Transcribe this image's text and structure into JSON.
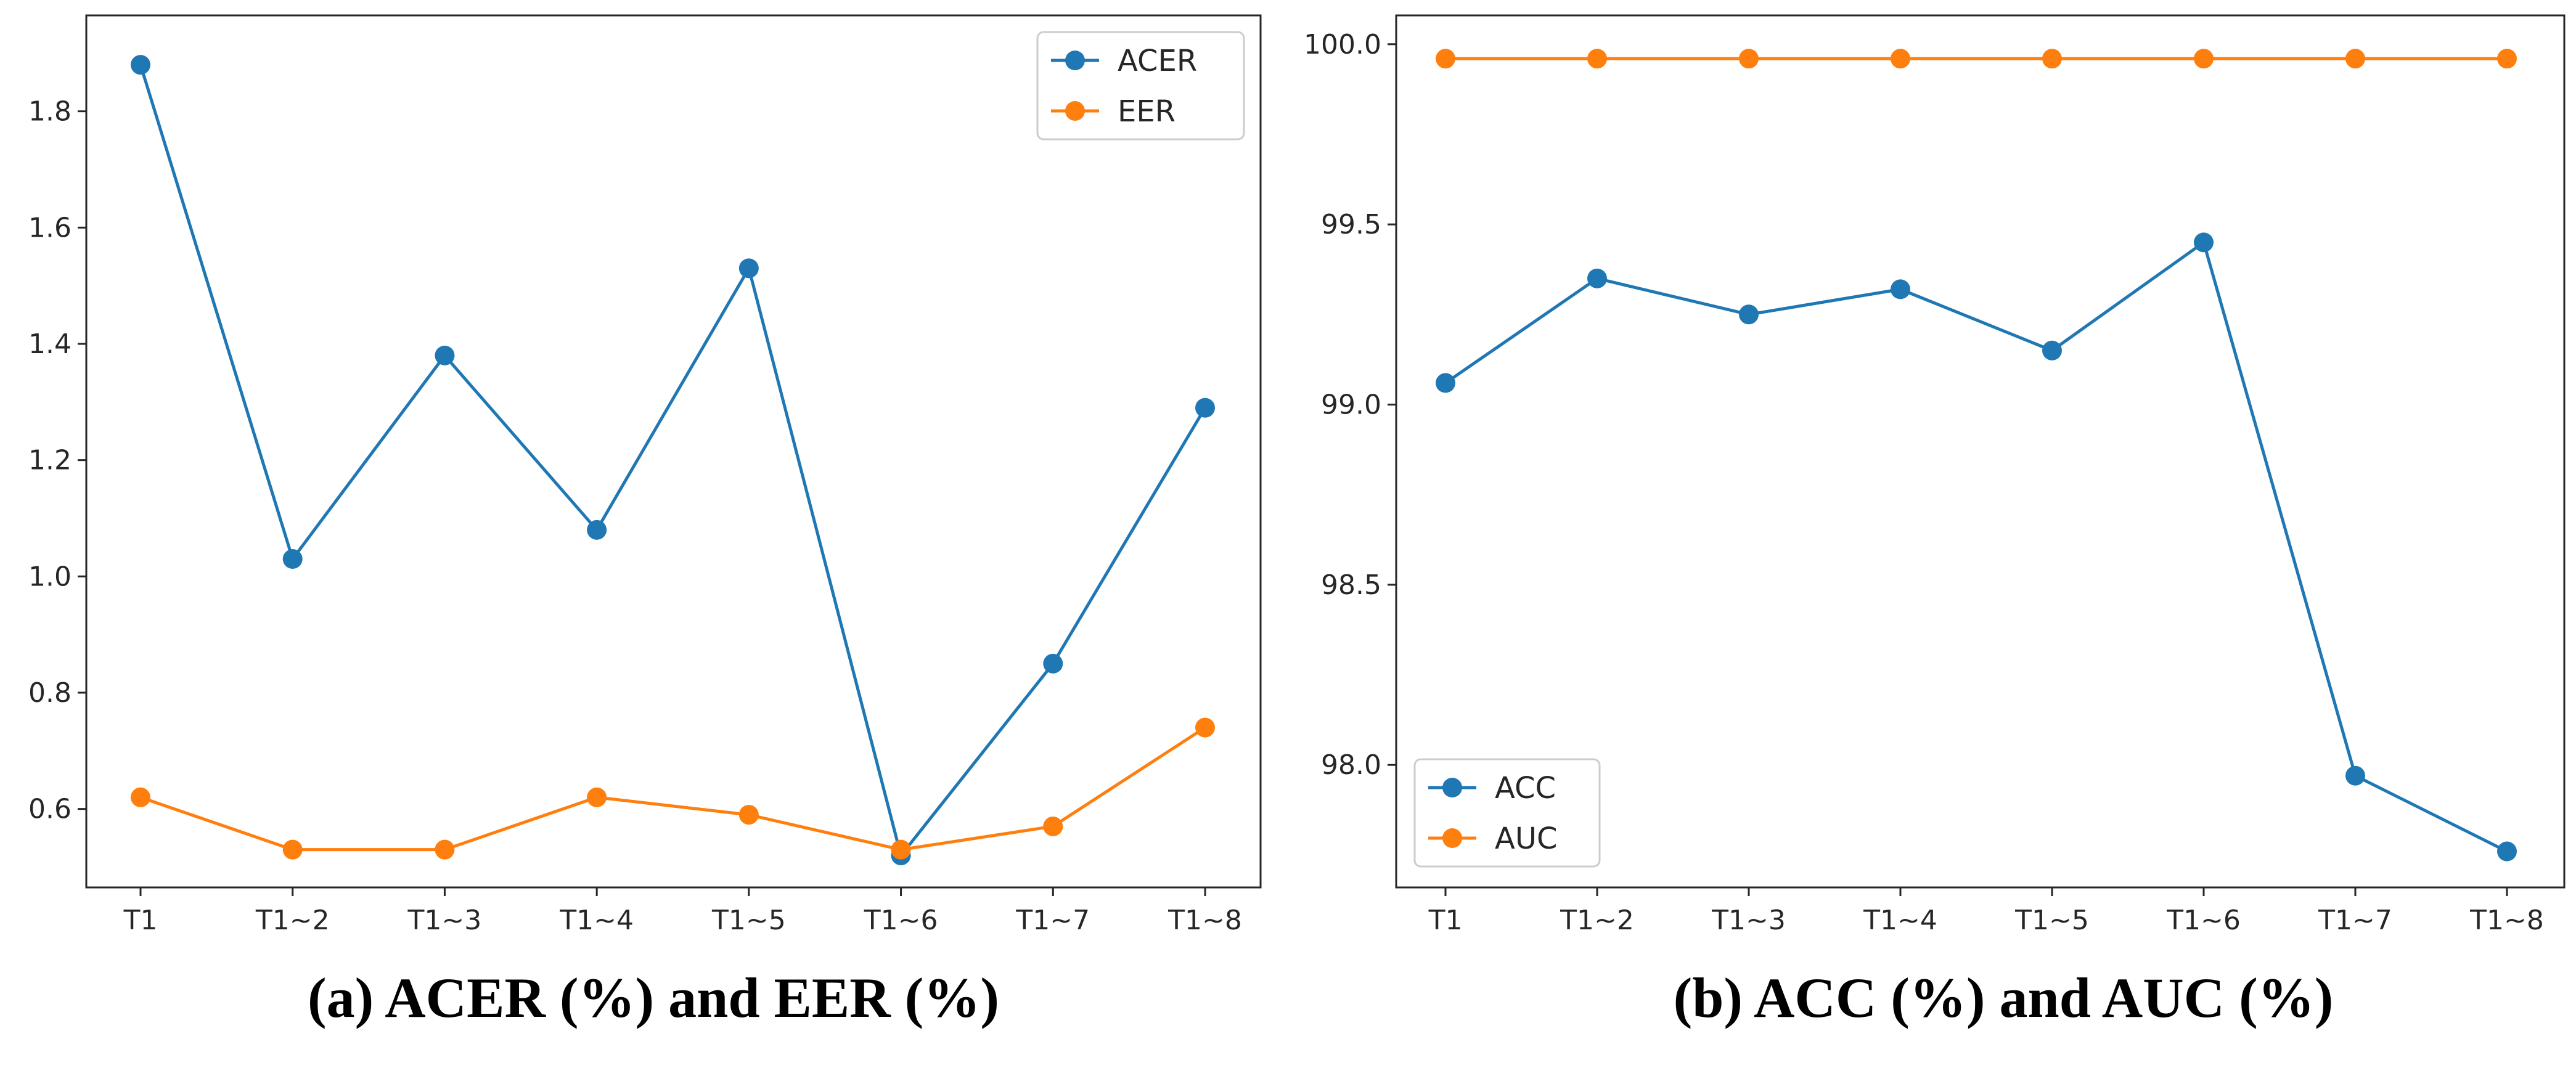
{
  "colors": {
    "series_1": "#1f77b4",
    "series_2": "#ff7f0e",
    "axis": "#262626"
  },
  "chart_data": [
    {
      "type": "line",
      "caption": "(a) ACER (%) and EER (%)",
      "categories": [
        "T1",
        "T1~2",
        "T1~3",
        "T1~4",
        "T1~5",
        "T1~6",
        "T1~7",
        "T1~8"
      ],
      "series": [
        {
          "name": "ACER",
          "values": [
            1.88,
            1.03,
            1.38,
            1.08,
            1.53,
            0.52,
            0.85,
            1.29
          ]
        },
        {
          "name": "EER",
          "values": [
            0.62,
            0.53,
            0.53,
            0.62,
            0.59,
            0.53,
            0.57,
            0.74
          ]
        }
      ],
      "yticks": [
        0.6,
        0.8,
        1.0,
        1.2,
        1.4,
        1.6,
        1.8
      ],
      "ytick_labels": [
        "0.6",
        "0.8",
        "1.0",
        "1.2",
        "1.4",
        "1.6",
        "1.8"
      ],
      "ylim": [
        0.465,
        1.965
      ],
      "legend": "upper-right",
      "xlabel": "",
      "ylabel": "",
      "grid": false
    },
    {
      "type": "line",
      "caption": "(b) ACC (%) and AUC (%)",
      "categories": [
        "T1",
        "T1~2",
        "T1~3",
        "T1~4",
        "T1~5",
        "T1~6",
        "T1~7",
        "T1~8"
      ],
      "series": [
        {
          "name": "ACC",
          "values": [
            99.06,
            99.35,
            99.25,
            99.32,
            99.15,
            99.45,
            97.97,
            97.76
          ]
        },
        {
          "name": "AUC",
          "values": [
            99.96,
            99.96,
            99.96,
            99.96,
            99.96,
            99.96,
            99.96,
            99.96
          ]
        }
      ],
      "yticks": [
        98.0,
        98.5,
        99.0,
        99.5,
        100.0
      ],
      "ytick_labels": [
        "98.0",
        "98.5",
        "99.0",
        "99.5",
        "100.0"
      ],
      "ylim": [
        97.66,
        100.08
      ],
      "legend": "lower-left",
      "xlabel": "",
      "ylabel": "",
      "grid": false
    }
  ]
}
